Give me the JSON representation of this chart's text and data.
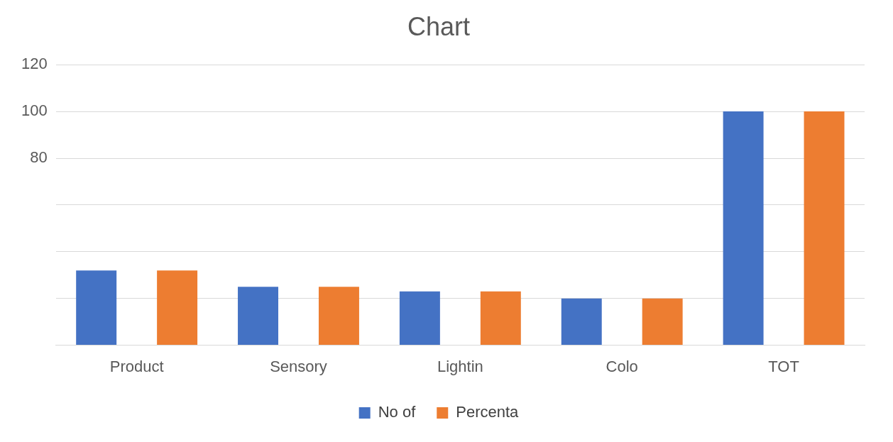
{
  "chart_data": {
    "type": "bar",
    "title": "Chart",
    "categories": [
      "Product",
      "Sensory",
      "Lightin",
      "Colo",
      "TOT"
    ],
    "series": [
      {
        "name": "No of",
        "color": "#4472c4",
        "values": [
          32,
          25,
          23,
          20,
          100
        ]
      },
      {
        "name": "Percenta",
        "color": "#ed7d31",
        "values": [
          32,
          25,
          23,
          20,
          100
        ]
      }
    ],
    "ylim": [
      0,
      120
    ],
    "yticks": [
      {
        "value": 0,
        "label": null
      },
      {
        "value": 20,
        "label": null
      },
      {
        "value": 40,
        "label": null
      },
      {
        "value": 60,
        "label": null
      },
      {
        "value": 80,
        "label": "80"
      },
      {
        "value": 100,
        "label": "100"
      },
      {
        "value": 120,
        "label": "120"
      }
    ],
    "grid": "y",
    "legend": "bottom"
  }
}
